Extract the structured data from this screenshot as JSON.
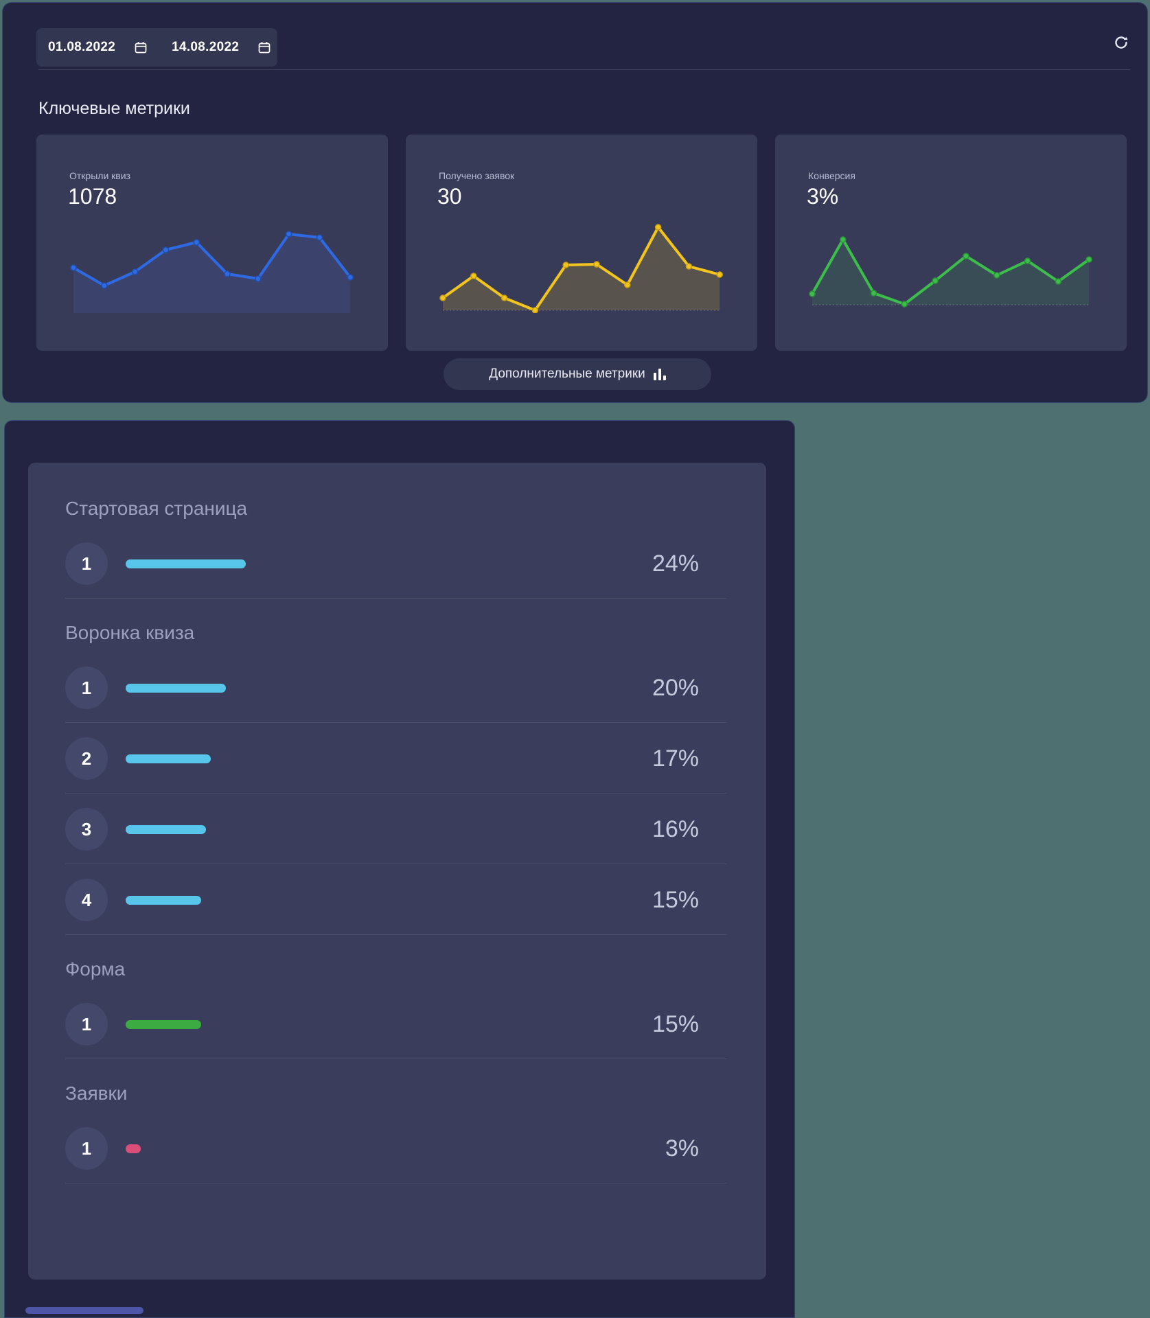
{
  "colors": {
    "page_bg": "#4e7071",
    "panel_navy": "#222442",
    "card_bg": "#383b58",
    "blue": "#2d6ae4",
    "yellow": "#f2c41e",
    "green": "#3cbd4c",
    "funnel_cyan": "#57c6ea",
    "funnel_green": "#3cab42",
    "funnel_pink": "#d94f78"
  },
  "top_section": {
    "date_range": {
      "start": "01.08.2022",
      "end": "14.08.2022"
    },
    "title": "Ключевые метрики",
    "cards": [
      {
        "label": "Открыли квиз",
        "value": "1078",
        "line_color": "#2d6ae4",
        "marker_stroke": "#1f4fae",
        "fill_color": "rgba(80,120,235,0.14)"
      },
      {
        "label": "Получено заявок",
        "value": "30",
        "line_color": "#f2c41e",
        "marker_stroke": "#c79d14",
        "fill_color": "rgba(242,196,30,0.18)"
      },
      {
        "label": "Конверсия",
        "value": "3%",
        "line_color": "#3cbd4c",
        "marker_stroke": "#2d9138",
        "fill_color": "rgba(63,191,77,0.14)"
      }
    ],
    "button": {
      "label": "Дополнительные метрики"
    }
  },
  "chart_data": [
    {
      "type": "line",
      "title": "Открыли квиз",
      "x": [
        1,
        2,
        3,
        4,
        5,
        6,
        7,
        8,
        9,
        10
      ],
      "values": [
        66,
        40,
        60,
        92,
        103,
        57,
        50,
        115,
        110,
        52
      ],
      "ylabel": "",
      "xlabel": "",
      "axis_labels_shown": false,
      "grid": false,
      "legend": "none",
      "units": "relative (no axis scale displayed)"
    },
    {
      "type": "line",
      "title": "Получено заявок",
      "x": [
        1,
        2,
        3,
        4,
        5,
        6,
        7,
        8,
        9,
        10
      ],
      "values": [
        22,
        54,
        22,
        4,
        70,
        71,
        41,
        125,
        68,
        56
      ],
      "ylabel": "",
      "xlabel": "",
      "axis_labels_shown": false,
      "grid": false,
      "legend": "none",
      "units": "relative (no axis scale displayed)"
    },
    {
      "type": "line",
      "title": "Конверсия",
      "x": [
        1,
        2,
        3,
        4,
        5,
        6,
        7,
        8,
        9,
        10
      ],
      "values": [
        28,
        107,
        29,
        13,
        47,
        83,
        55,
        76,
        46,
        78
      ],
      "ylabel": "",
      "xlabel": "",
      "axis_labels_shown": false,
      "grid": false,
      "legend": "none",
      "units": "relative (no axis scale displayed)"
    }
  ],
  "funnel": {
    "sections": [
      {
        "title": "Стартовая страница",
        "rows": [
          {
            "num": "1",
            "percent": 24,
            "percent_label": "24%",
            "bar_color": "#57c6ea"
          }
        ]
      },
      {
        "title": "Воронка квиза",
        "rows": [
          {
            "num": "1",
            "percent": 20,
            "percent_label": "20%",
            "bar_color": "#57c6ea"
          },
          {
            "num": "2",
            "percent": 17,
            "percent_label": "17%",
            "bar_color": "#57c6ea"
          },
          {
            "num": "3",
            "percent": 16,
            "percent_label": "16%",
            "bar_color": "#57c6ea"
          },
          {
            "num": "4",
            "percent": 15,
            "percent_label": "15%",
            "bar_color": "#57c6ea"
          }
        ]
      },
      {
        "title": "Форма",
        "rows": [
          {
            "num": "1",
            "percent": 15,
            "percent_label": "15%",
            "bar_color": "#3cab42"
          }
        ]
      },
      {
        "title": "Заявки",
        "rows": [
          {
            "num": "1",
            "percent": 3,
            "percent_label": "3%",
            "bar_color": "#d94f78"
          }
        ]
      }
    ]
  }
}
